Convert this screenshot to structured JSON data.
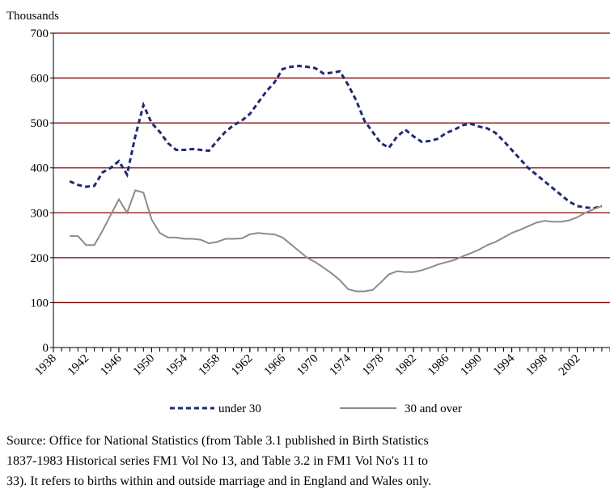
{
  "chart_data": {
    "type": "line",
    "y_label": "Thousands",
    "x": [
      1940,
      1941,
      1942,
      1943,
      1944,
      1945,
      1946,
      1947,
      1948,
      1949,
      1950,
      1951,
      1952,
      1953,
      1954,
      1955,
      1956,
      1957,
      1958,
      1959,
      1960,
      1961,
      1962,
      1963,
      1964,
      1965,
      1966,
      1967,
      1968,
      1969,
      1970,
      1971,
      1972,
      1973,
      1974,
      1975,
      1976,
      1977,
      1978,
      1979,
      1980,
      1981,
      1982,
      1983,
      1984,
      1985,
      1986,
      1987,
      1988,
      1989,
      1990,
      1991,
      1992,
      1993,
      1994,
      1995,
      1996,
      1997,
      1998,
      1999,
      2000,
      2001,
      2002,
      2003,
      2004,
      2005
    ],
    "series": [
      {
        "name": "under 30",
        "color": "#1f2a6e",
        "dashed": true,
        "values": [
          370,
          362,
          358,
          360,
          390,
          400,
          415,
          385,
          470,
          540,
          500,
          480,
          455,
          440,
          440,
          442,
          440,
          438,
          460,
          480,
          495,
          505,
          520,
          545,
          570,
          590,
          620,
          625,
          627,
          625,
          622,
          610,
          612,
          615,
          585,
          550,
          505,
          480,
          455,
          445,
          470,
          485,
          470,
          458,
          460,
          465,
          478,
          485,
          495,
          498,
          492,
          488,
          478,
          460,
          440,
          420,
          400,
          385,
          370,
          355,
          340,
          325,
          315,
          312,
          310,
          315
        ]
      },
      {
        "name": "30 and over",
        "color": "#8c8c8c",
        "dashed": false,
        "values": [
          248,
          248,
          228,
          228,
          260,
          295,
          330,
          300,
          350,
          345,
          285,
          255,
          245,
          245,
          242,
          242,
          240,
          232,
          235,
          242,
          242,
          243,
          252,
          255,
          253,
          252,
          245,
          230,
          215,
          200,
          190,
          178,
          165,
          150,
          130,
          125,
          125,
          128,
          145,
          163,
          170,
          168,
          168,
          172,
          178,
          185,
          190,
          195,
          203,
          210,
          218,
          228,
          235,
          245,
          255,
          262,
          270,
          278,
          282,
          280,
          280,
          283,
          290,
          300,
          308,
          315
        ]
      }
    ],
    "xlim": [
      1938,
      2006
    ],
    "xticks": [
      1938,
      1942,
      1946,
      1950,
      1954,
      1958,
      1962,
      1966,
      1970,
      1974,
      1978,
      1982,
      1986,
      1990,
      1994,
      1998,
      2002
    ],
    "ylim": [
      0,
      700
    ],
    "yticks": [
      0,
      100,
      200,
      300,
      400,
      500,
      600,
      700
    ],
    "grid": true,
    "grid_color": "#800000",
    "source": [
      "Source: Office for National Statistics (from Table 3.1 published in Birth Statistics",
      "1837-1983 Historical series FM1 Vol No 13, and Table 3.2 in FM1 Vol No's 11 to",
      "33). It refers to births within and outside marriage and in England and Wales only."
    ]
  }
}
